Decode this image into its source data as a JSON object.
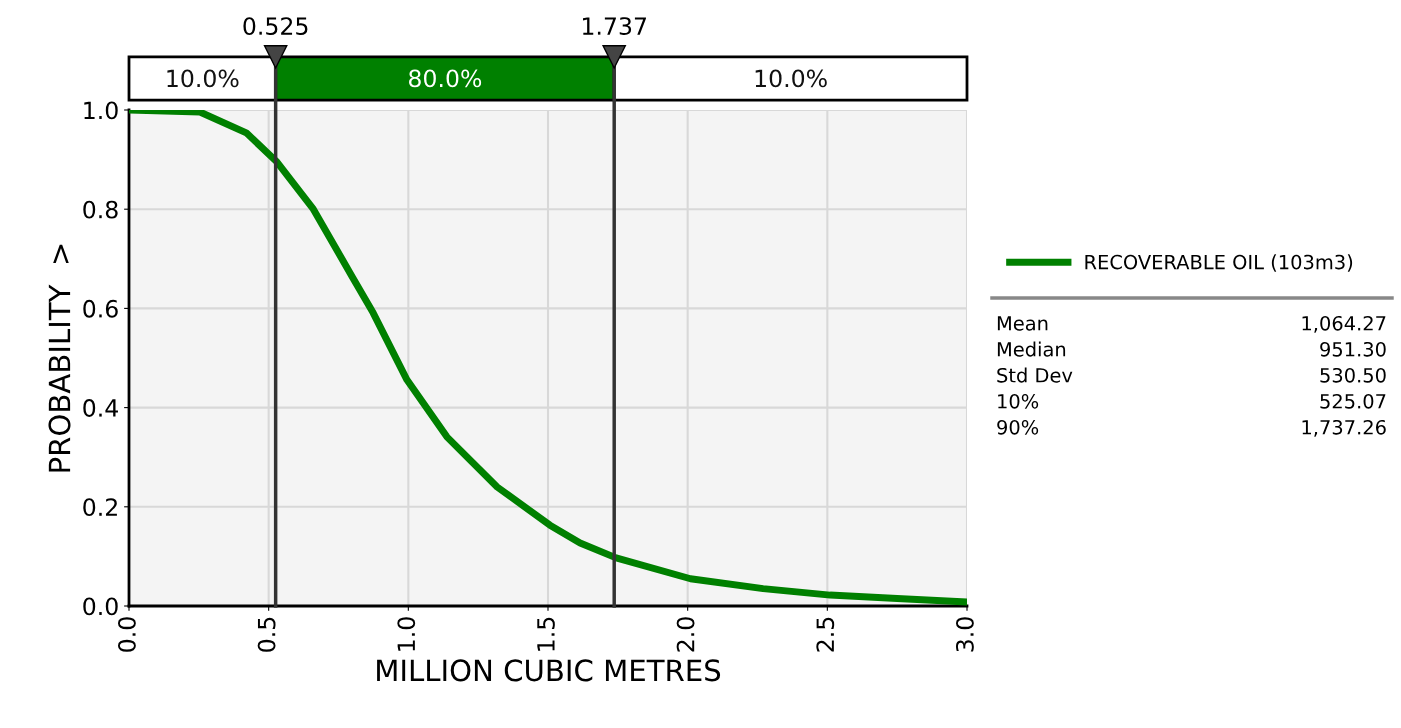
{
  "chart_data": {
    "type": "line",
    "xlabel": "MILLION CUBIC METRES",
    "ylabel": "PROBABILITY  >",
    "x": [
      0,
      0.254,
      0.42,
      0.53,
      0.66,
      0.8,
      0.874,
      0.995,
      1.138,
      1.318,
      1.507,
      1.615,
      1.744,
      2.01,
      2.27,
      2.51,
      2.75,
      3.0
    ],
    "series": [
      {
        "name": "RECOVERABLE OIL (103m3)",
        "color": "#008000",
        "values": [
          1.0,
          0.996,
          0.954,
          0.895,
          0.8,
          0.663,
          0.591,
          0.456,
          0.341,
          0.24,
          0.163,
          0.127,
          0.097,
          0.055,
          0.035,
          0.022,
          0.015,
          0.008
        ]
      }
    ],
    "xlim": [
      0,
      3.0
    ],
    "ylim": [
      0,
      1.0
    ],
    "xticks": [
      {
        "value": 0,
        "label": "0.0"
      },
      0.5,
      {
        "value": 1,
        "label": "1.0"
      },
      1.5,
      {
        "value": 2,
        "label": "2.0"
      },
      2.5,
      {
        "value": 3,
        "label": "3.0"
      }
    ],
    "yticks": [
      {
        "value": 0,
        "label": "0.0"
      },
      0.2,
      0.4,
      0.6,
      0.8,
      {
        "value": 1,
        "label": "1.0"
      }
    ],
    "grid": true,
    "legend": "right",
    "marker": "none",
    "line_style": "solid",
    "ref_lines": [
      {
        "axis": "x",
        "value": 0.525,
        "label": "0.525",
        "color": "#333333"
      },
      {
        "axis": "x",
        "value": 1.737,
        "label": "1.737",
        "color": "#333333"
      }
    ],
    "annotations": [
      "10.0%",
      "80.0%",
      "10.0%",
      "Mean",
      "1,064.27",
      "Median",
      "951.30",
      "Std Dev",
      "530.50",
      "10%",
      "525.07",
      "90%",
      "1,737.26"
    ]
  }
}
